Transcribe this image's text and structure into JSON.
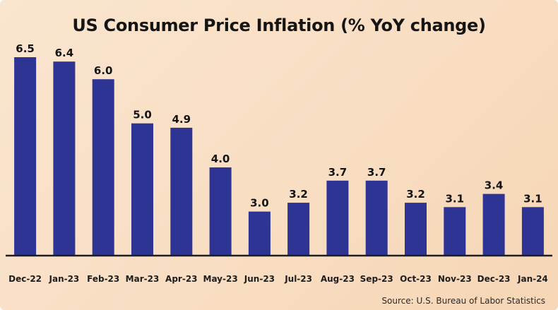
{
  "chart_data": {
    "type": "bar",
    "title": "US Consumer Price Inflation (% YoY change)",
    "categories": [
      "Dec-22",
      "Jan-23",
      "Feb-23",
      "Mar-23",
      "Apr-23",
      "May-23",
      "Jun-23",
      "Jul-23",
      "Aug-23",
      "Sep-23",
      "Oct-23",
      "Nov-23",
      "Dec-23",
      "Jan-24"
    ],
    "values": [
      6.5,
      6.4,
      6.0,
      5.0,
      4.9,
      4.0,
      3.0,
      3.2,
      3.7,
      3.7,
      3.2,
      3.1,
      3.4,
      3.1
    ],
    "value_labels": [
      "6.5",
      "6.4",
      "6.0",
      "5.0",
      "4.9",
      "4.0",
      "3.0",
      "3.2",
      "3.7",
      "3.7",
      "3.2",
      "3.1",
      "3.4",
      "3.1"
    ],
    "ylim": [
      2.0,
      6.5
    ],
    "grid": false,
    "legend": "none",
    "bar_color": "#2e3494",
    "axis_color": "#1e1e1e",
    "source": "Source: U.S. Bureau of Labor Statistics"
  }
}
